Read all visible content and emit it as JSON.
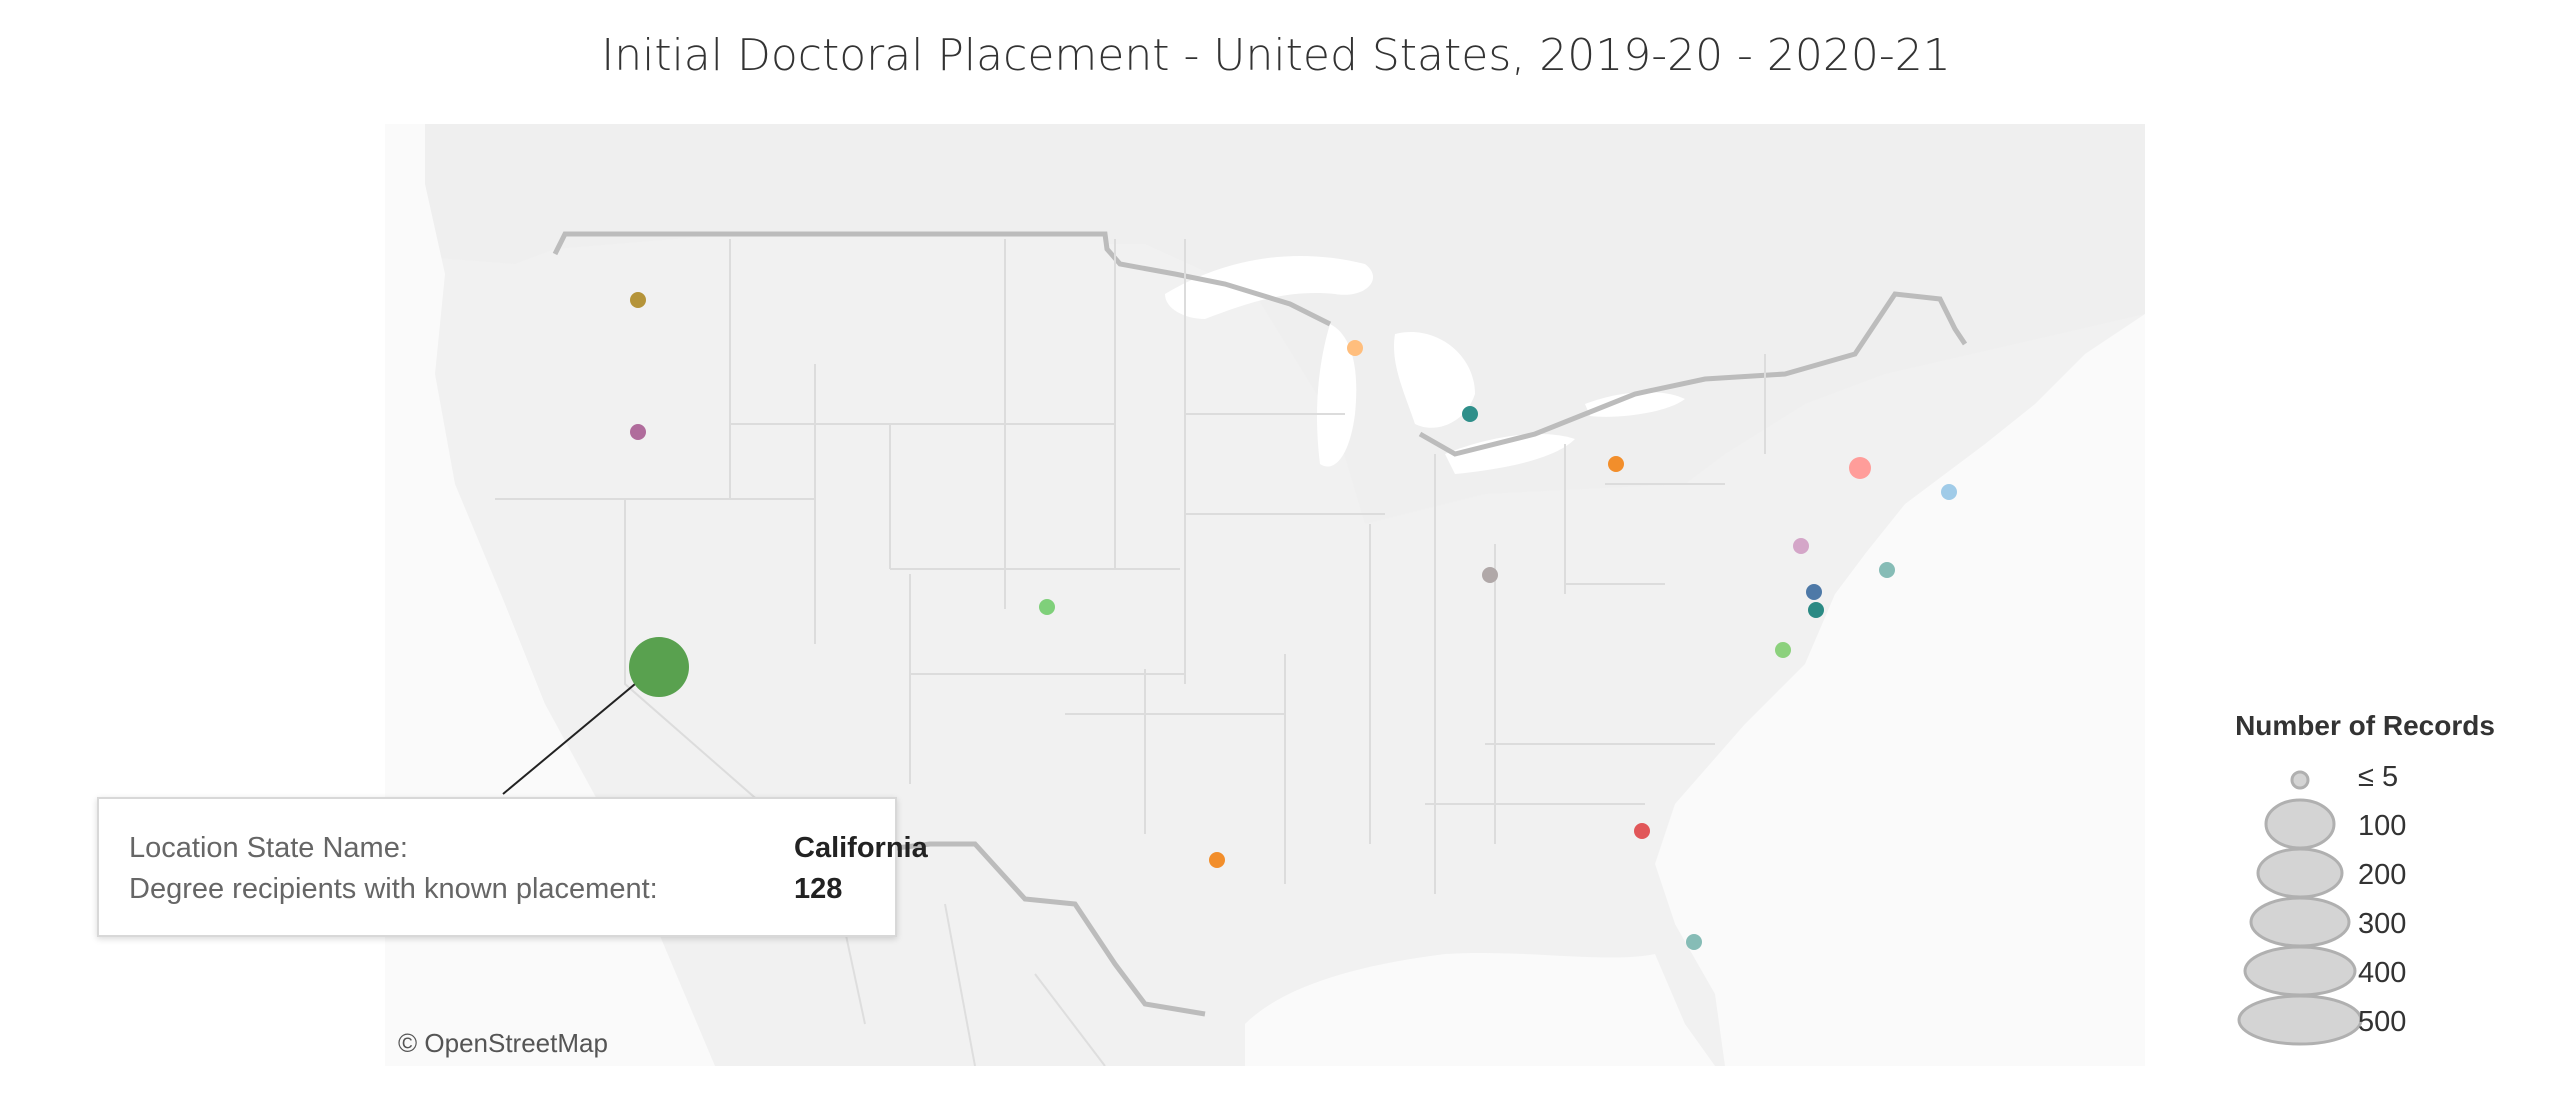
{
  "title": "Initial Doctoral Placement - United States, 2019-20 - 2020-21",
  "attribution": "© OpenStreetMap",
  "tooltip": {
    "label_state": "Location State Name:",
    "value_state": "California",
    "label_count": "Degree recipients with known placement:",
    "value_count": "128"
  },
  "legend": {
    "title": "Number of Records",
    "items": [
      "≤ 5",
      "100",
      "200",
      "300",
      "400",
      "500"
    ]
  },
  "colors": {
    "map_bg": "#f1f1f1",
    "land_borders": "#dcdcdc",
    "country_border": "#bcbcbc",
    "legend_circle": "#d4d4d4",
    "legend_stroke": "#b0b0b0"
  },
  "marks": [
    {
      "state": "Washington",
      "color": "#b5943a"
    },
    {
      "state": "Oregon",
      "color": "#b06c9c"
    },
    {
      "state": "California",
      "color": "#59a14f"
    },
    {
      "state": "Colorado",
      "color": "#7fd07a"
    },
    {
      "state": "Texas",
      "color": "#f28e2b"
    },
    {
      "state": "Minnesota",
      "color": "#ffbe7d"
    },
    {
      "state": "Wisconsin",
      "color": "#2f8f8a"
    },
    {
      "state": "Illinois",
      "color": "#b0a8a8"
    },
    {
      "state": "Michigan",
      "color": "#f28e2b"
    },
    {
      "state": "New York",
      "color": "#ff9d9a"
    },
    {
      "state": "Massachusetts",
      "color": "#a0cbe8"
    },
    {
      "state": "Pennsylvania",
      "color": "#d4a6c8"
    },
    {
      "state": "New Jersey",
      "color": "#86bcb6"
    },
    {
      "state": "Maryland",
      "color": "#4e79a7"
    },
    {
      "state": "District of Columbia",
      "color": "#2b8a84"
    },
    {
      "state": "Virginia",
      "color": "#8cd17d"
    },
    {
      "state": "Georgia",
      "color": "#e15759"
    },
    {
      "state": "Florida",
      "color": "#86bcb6"
    }
  ]
}
